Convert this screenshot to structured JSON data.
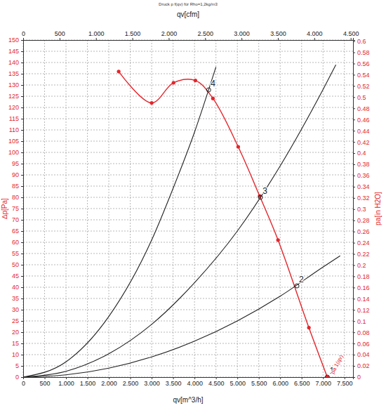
{
  "chart_data": {
    "type": "line",
    "title": "Druck p f(qv) für Rho=1,2kg/m3",
    "x_label": "qv[m^3/h]",
    "x2_label": "qv[cfm]",
    "y_label": "∆p[Pa]",
    "y2_label": "pa[in H2O]",
    "xlim": [
      0,
      7700
    ],
    "xticks": [
      0,
      500,
      {
        "value": 1000,
        "label": "1.000"
      },
      {
        "value": 1500,
        "label": "1.500"
      },
      {
        "value": 2000,
        "label": "2.000"
      },
      {
        "value": 2500,
        "label": "2.500"
      },
      {
        "value": 3000,
        "label": "3.000"
      },
      {
        "value": 3500,
        "label": "3.500"
      },
      {
        "value": 4000,
        "label": "4.000"
      },
      {
        "value": 4500,
        "label": "4.500"
      },
      {
        "value": 5000,
        "label": "5.000"
      },
      {
        "value": 5500,
        "label": "5.500"
      },
      {
        "value": 6000,
        "label": "6.000"
      },
      {
        "value": 6500,
        "label": "6.500"
      },
      {
        "value": 7000,
        "label": "7.000"
      },
      {
        "value": 7500,
        "label": "7.500"
      }
    ],
    "x2lim": [
      0,
      4532
    ],
    "x2ticks": [
      0,
      500,
      {
        "value": 1000,
        "label": "1.000"
      },
      {
        "value": 1500,
        "label": "1.500"
      },
      {
        "value": 2000,
        "label": "2.000"
      },
      {
        "value": 2500,
        "label": "2.500"
      },
      {
        "value": 3000,
        "label": "3.000"
      },
      {
        "value": 3500,
        "label": "3.500"
      },
      {
        "value": 4000,
        "label": "4.000"
      },
      {
        "value": 4500,
        "label": "4.500"
      }
    ],
    "ylim": [
      0,
      150
    ],
    "yticks": [
      0,
      5,
      10,
      15,
      20,
      25,
      30,
      35,
      40,
      45,
      50,
      55,
      60,
      65,
      70,
      75,
      80,
      85,
      90,
      95,
      100,
      105,
      110,
      115,
      120,
      125,
      130,
      135,
      140,
      145,
      150
    ],
    "y2lim": [
      0,
      0.602
    ],
    "y2ticks": [
      0,
      0.02,
      0.04,
      0.06,
      0.08,
      0.1,
      0.12,
      0.14,
      0.16,
      0.18,
      0.2,
      0.22,
      0.24,
      0.26,
      0.28,
      0.3,
      0.32,
      0.34,
      0.36,
      0.38,
      0.4,
      0.42,
      0.44,
      0.46,
      0.48,
      0.5,
      0.52,
      0.54,
      0.56,
      0.58,
      0.6
    ],
    "grid": true,
    "series": [
      {
        "type": "line",
        "color": "#e3262c",
        "marker": "circle",
        "line_style": "solid",
        "x": [
          2230,
          3000,
          3510,
          4020,
          4430,
          5020,
          5520,
          5950,
          6670,
          7100
        ],
        "values": [
          136,
          122,
          131,
          132,
          124,
          102.5,
          80.6,
          61,
          22,
          0
        ]
      },
      {
        "type": "line",
        "color": "#222222",
        "marker": "none",
        "line_style": "solid",
        "x": [
          0,
          1000,
          2000,
          3000,
          3500,
          4000,
          4500
        ],
        "values": [
          0,
          6.8,
          27,
          61,
          84,
          109,
          138
        ]
      },
      {
        "type": "line",
        "color": "#222222",
        "marker": "none",
        "line_style": "solid",
        "x": [
          0,
          1000,
          2000,
          3000,
          4000,
          5000,
          6000,
          7000,
          7300
        ],
        "values": [
          0,
          2.6,
          10.4,
          23.5,
          42,
          65,
          94,
          128,
          139
        ]
      },
      {
        "type": "line",
        "color": "#222222",
        "marker": "none",
        "line_style": "solid",
        "x": [
          0,
          1000,
          2000,
          3000,
          4000,
          5000,
          6000,
          7000,
          7400
        ],
        "values": [
          0,
          1,
          4,
          9,
          16,
          25,
          36,
          49,
          54
        ]
      }
    ],
    "annotations": [
      {
        "text": "1",
        "x": 7100,
        "y": 0
      },
      {
        "text": "2",
        "x": 6390,
        "y": 40.6
      },
      {
        "text": "3",
        "x": 5540,
        "y": 80
      },
      {
        "text": "4",
        "x": 4330,
        "y": 127.8
      }
    ],
    "curve_label": {
      "text": "pa 1(qv)",
      "x": 7100,
      "y": 0
    }
  }
}
